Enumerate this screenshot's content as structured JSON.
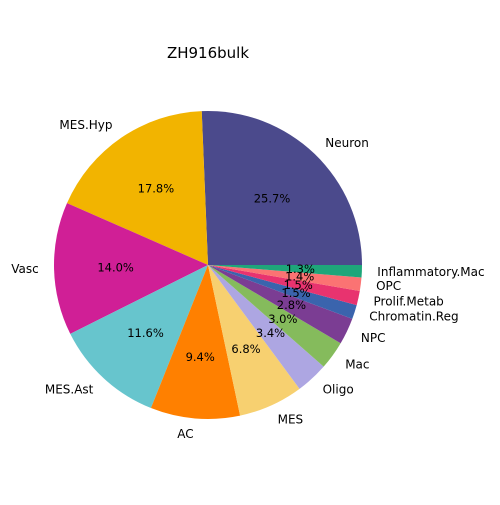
{
  "chart_data": {
    "type": "pie",
    "title": "ZH916bulk",
    "start_angle_deg": 0,
    "direction": "counterclockwise",
    "slices": [
      {
        "label": "Neuron",
        "value": 25.7,
        "pct_label": "25.7%",
        "color": "#4b4a8c"
      },
      {
        "label": "MES.Hyp",
        "value": 17.8,
        "pct_label": "17.8%",
        "color": "#f2b400"
      },
      {
        "label": "Vasc",
        "value": 14.0,
        "pct_label": "14.0%",
        "color": "#d01f96"
      },
      {
        "label": "MES.Ast",
        "value": 11.6,
        "pct_label": "11.6%",
        "color": "#67c5cd"
      },
      {
        "label": "AC",
        "value": 9.4,
        "pct_label": "9.4%",
        "color": "#ff8000"
      },
      {
        "label": "MES",
        "value": 6.8,
        "pct_label": "6.8%",
        "color": "#f7d070"
      },
      {
        "label": "Oligo",
        "value": 3.4,
        "pct_label": "3.4%",
        "color": "#ada6e2"
      },
      {
        "label": "Mac",
        "value": 3.0,
        "pct_label": "3.0%",
        "color": "#85bb5c"
      },
      {
        "label": "NPC",
        "value": 2.8,
        "pct_label": "2.8%",
        "color": "#7b3d93"
      },
      {
        "label": "Chromatin.Reg",
        "value": 1.5,
        "pct_label": "1.5%",
        "color": "#3a64ad"
      },
      {
        "label": "Prolif.Metab",
        "value": 1.5,
        "pct_label": "1.5%",
        "color": "#e8336f"
      },
      {
        "label": "OPC",
        "value": 1.4,
        "pct_label": "1.4%",
        "color": "#fb7373"
      },
      {
        "label": "Inflammatory.Mac",
        "value": 1.3,
        "pct_label": "1.3%",
        "color": "#1ea67a"
      }
    ]
  }
}
